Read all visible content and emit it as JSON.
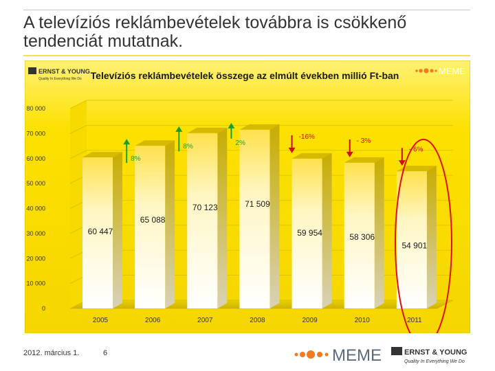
{
  "slide": {
    "title": "A televíziós reklámbevételek továbbra is csökkenő tendenciát mutatnak.",
    "footer_date": "2012. március 1.",
    "page_number": "6"
  },
  "logos": {
    "ey_small_top": "ERNST & YOUNG",
    "ey_small_bottom": "Quality In Everything We Do",
    "meme": "MEME",
    "ey_big_top": "ERNST & YOUNG",
    "ey_big_bottom": "Quality In Everything We Do"
  },
  "colors": {
    "panel": "#fce100",
    "bar_light": "#fffdf0",
    "bar_mid": "#ffe66a",
    "bar_top": "#d4b800",
    "bar_side": "#9f8a00",
    "up_arrow": "#1a9e2e",
    "down_arrow": "#d01010",
    "ellipse": "#e01010",
    "meme_dots": "#f47a20",
    "meme_text": "#5a6b7c"
  },
  "chart_data": {
    "type": "bar",
    "title": "Televíziós reklámbevételek összege az elmúlt években millió Ft-ban",
    "categories": [
      "2005",
      "2006",
      "2007",
      "2008",
      "2009",
      "2010",
      "2011"
    ],
    "values": [
      60447,
      65088,
      70123,
      71509,
      59954,
      58306,
      54901
    ],
    "value_labels": [
      "60 447",
      "65 088",
      "70 123",
      "71 509",
      "59 954",
      "58 306",
      "54 901"
    ],
    "ylim": [
      0,
      80000
    ],
    "y_ticks": [
      "0",
      "10 000",
      "20 000",
      "30 000",
      "40 000",
      "50 000",
      "60 000",
      "70 000",
      "80 000"
    ],
    "grid": true,
    "annotations": [
      {
        "bar": 1,
        "text": "8%",
        "direction": "up"
      },
      {
        "bar": 2,
        "text": "8%",
        "direction": "up"
      },
      {
        "bar": 3,
        "text": "2%",
        "direction": "up"
      },
      {
        "bar": 4,
        "text": "-16%",
        "direction": "down"
      },
      {
        "bar": 5,
        "text": "- 3%",
        "direction": "down"
      },
      {
        "bar": 6,
        "text": "- 6%",
        "direction": "down"
      }
    ],
    "highlighted_bar": 6
  }
}
